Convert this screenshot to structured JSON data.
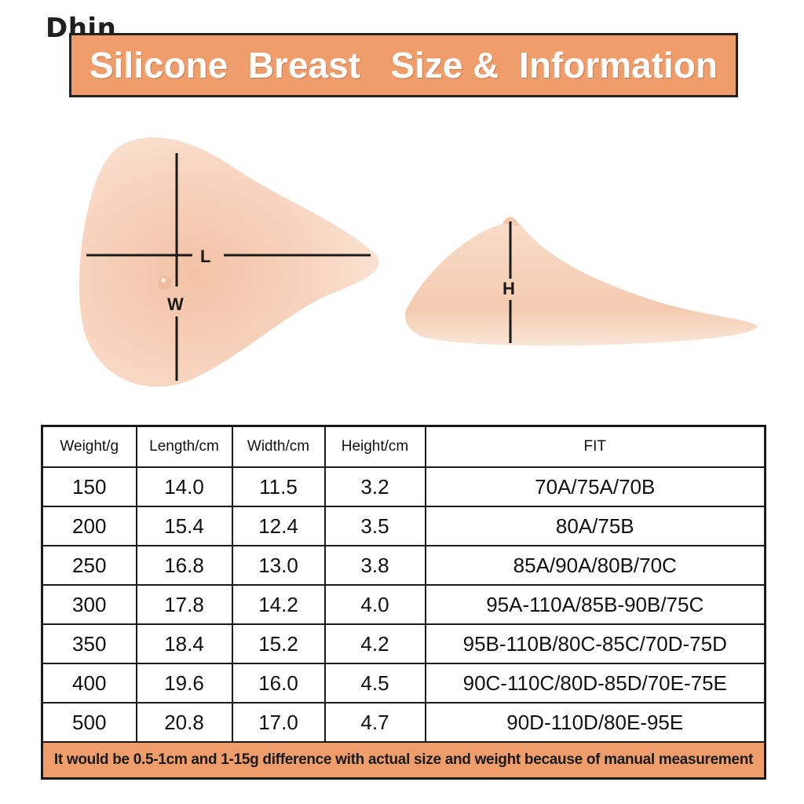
{
  "watermark": "Dhin",
  "banner": {
    "title": "Silicone  Breast   Size &  Information"
  },
  "illustration": {
    "front_labels": {
      "length": "L",
      "width": "W"
    },
    "side_labels": {
      "height": "H"
    }
  },
  "table": {
    "headers": [
      "Weight/g",
      "Length/cm",
      "Width/cm",
      "Height/cm",
      "FIT"
    ],
    "rows": [
      [
        "150",
        "14.0",
        "11.5",
        "3.2",
        "70A/75A/70B"
      ],
      [
        "200",
        "15.4",
        "12.4",
        "3.5",
        "80A/75B"
      ],
      [
        "250",
        "16.8",
        "13.0",
        "3.8",
        "85A/90A/80B/70C"
      ],
      [
        "300",
        "17.8",
        "14.2",
        "4.0",
        "95A-110A/85B-90B/75C"
      ],
      [
        "350",
        "18.4",
        "15.2",
        "4.2",
        "95B-110B/80C-85C/70D-75D"
      ],
      [
        "400",
        "19.6",
        "16.0",
        "4.5",
        "90C-110C/80D-85D/70E-75E"
      ],
      [
        "500",
        "20.8",
        "17.0",
        "4.7",
        "90D-110D/80E-95E"
      ]
    ],
    "note": "It would be 0.5-1cm and 1-15g difference with actual size and weight because of manual measurement"
  },
  "colors": {
    "banner": "#ef9d6b",
    "skin_light": "#fbe3d4",
    "skin_mid": "#f3c3a6",
    "skin_dark": "#e9a98a"
  }
}
